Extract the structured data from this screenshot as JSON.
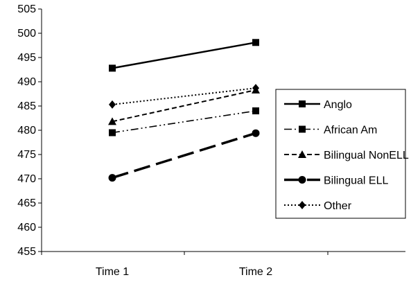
{
  "chart_data": {
    "type": "line",
    "categories": [
      "Time 1",
      "Time 2"
    ],
    "ylim": [
      455,
      505
    ],
    "yticks": [
      455,
      460,
      465,
      470,
      475,
      480,
      485,
      490,
      495,
      500,
      505
    ],
    "grid": false,
    "legend_position": "right",
    "series": [
      {
        "name": "Anglo",
        "values": [
          492.8,
          498.1
        ],
        "marker": "square",
        "dash": "solid"
      },
      {
        "name": "African Am",
        "values": [
          479.5,
          484.0
        ],
        "marker": "square",
        "dash": "dash-dot-dot"
      },
      {
        "name": "Bilingual NonELL",
        "values": [
          481.8,
          488.3
        ],
        "marker": "triangle",
        "dash": "dashed"
      },
      {
        "name": "Bilingual ELL",
        "values": [
          470.2,
          479.4
        ],
        "marker": "circle",
        "dash": "long-dash"
      },
      {
        "name": "Other",
        "values": [
          485.3,
          488.7
        ],
        "marker": "diamond",
        "dash": "dotted"
      }
    ]
  }
}
